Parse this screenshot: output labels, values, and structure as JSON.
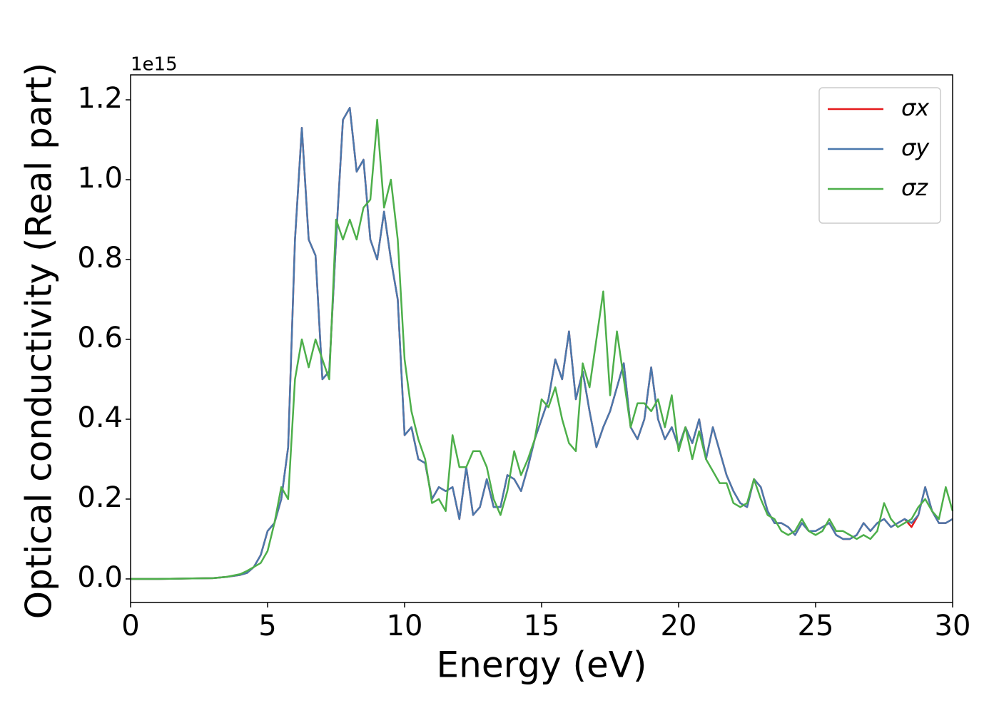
{
  "chart_data": {
    "type": "line",
    "xlabel": "Energy (eV)",
    "ylabel": "Optical conductivity (Real part)",
    "offset_label": "1e15",
    "xlim": [
      0,
      30
    ],
    "xticks": [
      0,
      5,
      10,
      15,
      20,
      25,
      30
    ],
    "ylim": [
      -0.059,
      1.2625
    ],
    "yticks": [
      {
        "value": 0,
        "label": "0.0"
      },
      0.2,
      0.4,
      0.6,
      0.8,
      {
        "value": 1,
        "label": "1.0"
      },
      1.2
    ],
    "legend": "upper right",
    "x": [
      0,
      1,
      2,
      3,
      3.5,
      4,
      4.25,
      4.5,
      4.75,
      5,
      5.25,
      5.5,
      5.75,
      6,
      6.25,
      6.5,
      6.75,
      7,
      7.25,
      7.5,
      7.75,
      8,
      8.25,
      8.5,
      8.75,
      9,
      9.25,
      9.5,
      9.75,
      10,
      10.25,
      10.5,
      10.75,
      11,
      11.25,
      11.5,
      11.75,
      12,
      12.25,
      12.5,
      12.75,
      13,
      13.25,
      13.5,
      13.75,
      14,
      14.25,
      14.5,
      14.75,
      15,
      15.25,
      15.5,
      15.75,
      16,
      16.25,
      16.5,
      16.75,
      17,
      17.25,
      17.5,
      17.75,
      18,
      18.25,
      18.5,
      18.75,
      19,
      19.25,
      19.5,
      19.75,
      20,
      20.25,
      20.5,
      20.75,
      21,
      21.25,
      21.5,
      21.75,
      22,
      22.25,
      22.5,
      22.75,
      23,
      23.25,
      23.5,
      23.75,
      24,
      24.25,
      24.5,
      24.75,
      25,
      25.25,
      25.5,
      25.75,
      26,
      26.25,
      26.5,
      26.75,
      27,
      27.25,
      27.5,
      27.75,
      28,
      28.25,
      28.5,
      28.75,
      29,
      29.25,
      29.5,
      29.75,
      30
    ],
    "series": [
      {
        "name": "σx",
        "color": "#e41a1c",
        "values": [
          0,
          0,
          0.001,
          0.002,
          0.005,
          0.01,
          0.015,
          0.03,
          0.06,
          0.12,
          0.14,
          0.2,
          0.33,
          0.85,
          1.13,
          0.85,
          0.81,
          0.5,
          0.52,
          0.85,
          1.15,
          1.18,
          1.02,
          1.05,
          0.85,
          0.8,
          0.92,
          0.8,
          0.7,
          0.36,
          0.38,
          0.3,
          0.29,
          0.2,
          0.23,
          0.22,
          0.23,
          0.15,
          0.28,
          0.16,
          0.18,
          0.25,
          0.18,
          0.18,
          0.26,
          0.25,
          0.22,
          0.28,
          0.35,
          0.4,
          0.45,
          0.55,
          0.5,
          0.62,
          0.45,
          0.52,
          0.42,
          0.33,
          0.38,
          0.42,
          0.48,
          0.54,
          0.38,
          0.35,
          0.4,
          0.53,
          0.4,
          0.35,
          0.38,
          0.33,
          0.38,
          0.34,
          0.4,
          0.3,
          0.38,
          0.32,
          0.26,
          0.22,
          0.19,
          0.18,
          0.25,
          0.23,
          0.17,
          0.14,
          0.14,
          0.13,
          0.11,
          0.14,
          0.12,
          0.12,
          0.13,
          0.14,
          0.11,
          0.1,
          0.1,
          0.11,
          0.14,
          0.12,
          0.14,
          0.15,
          0.13,
          0.14,
          0.15,
          0.13,
          0.16,
          0.23,
          0.17,
          0.14,
          0.14,
          0.15
        ]
      },
      {
        "name": "σy",
        "color": "#4a78ac",
        "values": [
          0,
          0,
          0.001,
          0.002,
          0.005,
          0.01,
          0.015,
          0.03,
          0.06,
          0.12,
          0.14,
          0.2,
          0.33,
          0.85,
          1.13,
          0.85,
          0.81,
          0.5,
          0.52,
          0.85,
          1.15,
          1.18,
          1.02,
          1.05,
          0.85,
          0.8,
          0.92,
          0.8,
          0.7,
          0.36,
          0.38,
          0.3,
          0.29,
          0.2,
          0.23,
          0.22,
          0.23,
          0.15,
          0.28,
          0.16,
          0.18,
          0.25,
          0.18,
          0.18,
          0.26,
          0.25,
          0.22,
          0.28,
          0.35,
          0.4,
          0.45,
          0.55,
          0.5,
          0.62,
          0.45,
          0.52,
          0.42,
          0.33,
          0.38,
          0.42,
          0.48,
          0.54,
          0.38,
          0.35,
          0.4,
          0.53,
          0.4,
          0.35,
          0.38,
          0.33,
          0.38,
          0.34,
          0.4,
          0.3,
          0.38,
          0.32,
          0.26,
          0.22,
          0.19,
          0.18,
          0.25,
          0.23,
          0.17,
          0.14,
          0.14,
          0.13,
          0.11,
          0.14,
          0.12,
          0.12,
          0.13,
          0.14,
          0.11,
          0.1,
          0.1,
          0.11,
          0.14,
          0.12,
          0.14,
          0.15,
          0.13,
          0.14,
          0.15,
          0.14,
          0.16,
          0.23,
          0.17,
          0.14,
          0.14,
          0.15
        ]
      },
      {
        "name": "σz",
        "color": "#4daf4a",
        "values": [
          0,
          0,
          0.001,
          0.002,
          0.005,
          0.012,
          0.02,
          0.03,
          0.04,
          0.07,
          0.14,
          0.23,
          0.2,
          0.5,
          0.6,
          0.53,
          0.6,
          0.55,
          0.5,
          0.9,
          0.85,
          0.9,
          0.85,
          0.93,
          0.95,
          1.15,
          0.93,
          1.0,
          0.85,
          0.55,
          0.42,
          0.35,
          0.3,
          0.19,
          0.2,
          0.17,
          0.36,
          0.28,
          0.28,
          0.32,
          0.32,
          0.28,
          0.2,
          0.16,
          0.22,
          0.32,
          0.26,
          0.3,
          0.35,
          0.45,
          0.43,
          0.48,
          0.4,
          0.34,
          0.32,
          0.54,
          0.48,
          0.6,
          0.72,
          0.46,
          0.62,
          0.5,
          0.38,
          0.44,
          0.44,
          0.42,
          0.45,
          0.38,
          0.46,
          0.32,
          0.38,
          0.3,
          0.37,
          0.3,
          0.27,
          0.24,
          0.24,
          0.19,
          0.18,
          0.19,
          0.25,
          0.2,
          0.16,
          0.15,
          0.12,
          0.11,
          0.12,
          0.15,
          0.12,
          0.11,
          0.12,
          0.15,
          0.12,
          0.12,
          0.11,
          0.1,
          0.11,
          0.1,
          0.12,
          0.19,
          0.15,
          0.13,
          0.14,
          0.15,
          0.18,
          0.2,
          0.17,
          0.15,
          0.23,
          0.17
        ]
      }
    ]
  }
}
